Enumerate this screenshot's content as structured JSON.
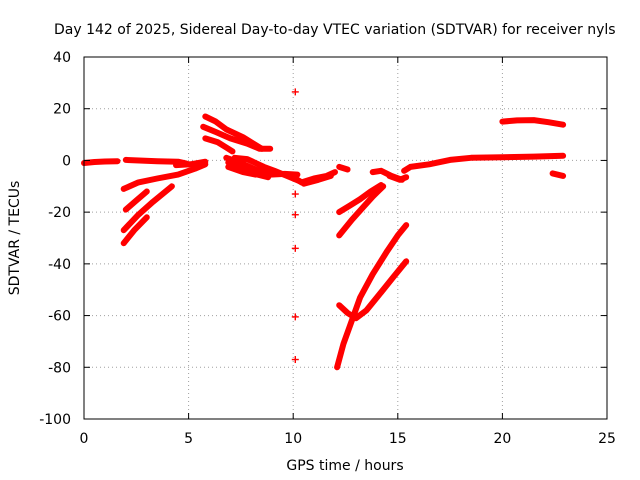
{
  "chart_data": {
    "type": "scatter",
    "title": "Day 142 of 2025, Sidereal Day-to-day VTEC variation (SDTVAR) for receiver nyls",
    "xlabel": "GPS time / hours",
    "ylabel": "SDTVAR / TECUs",
    "xlim": [
      0,
      25
    ],
    "ylim": [
      -100,
      40
    ],
    "xticks": [
      0,
      5,
      10,
      15,
      20,
      25
    ],
    "xtick_labels": [
      "0",
      "5",
      "10",
      "15",
      "20",
      "25"
    ],
    "yticks": [
      -100,
      -80,
      -60,
      -40,
      -20,
      0,
      20,
      40
    ],
    "ytick_labels": [
      "-100",
      "-80",
      "-60",
      "-40",
      "-20",
      "0",
      "20",
      "40"
    ],
    "grid": true,
    "marker": "+",
    "color": "#ff0000",
    "segments": [
      [
        [
          0.0,
          -1
        ],
        [
          0.5,
          -0.6
        ],
        [
          1.0,
          -0.4
        ],
        [
          1.6,
          -0.3
        ]
      ],
      [
        [
          1.9,
          -11
        ],
        [
          2.6,
          -8.5
        ],
        [
          3.5,
          -7
        ],
        [
          4.5,
          -5.5
        ],
        [
          5.3,
          -3.2
        ],
        [
          5.8,
          -1.5
        ]
      ],
      [
        [
          2.0,
          -19
        ],
        [
          2.5,
          -15.5
        ],
        [
          3.0,
          -12
        ]
      ],
      [
        [
          1.9,
          -27
        ],
        [
          2.6,
          -21
        ],
        [
          3.3,
          -16
        ],
        [
          4.2,
          -10
        ]
      ],
      [
        [
          1.9,
          -32
        ],
        [
          2.4,
          -27
        ],
        [
          3.0,
          -22
        ]
      ],
      [
        [
          2.0,
          0.2
        ],
        [
          3.5,
          -0.3
        ],
        [
          4.5,
          -0.5
        ],
        [
          4.9,
          -1.2
        ]
      ],
      [
        [
          4.4,
          -1.8
        ],
        [
          5.1,
          -1.5
        ],
        [
          5.8,
          -0.5
        ]
      ],
      [
        [
          5.8,
          17
        ],
        [
          6.3,
          15
        ],
        [
          6.8,
          12
        ],
        [
          7.6,
          9
        ],
        [
          8.2,
          6
        ],
        [
          8.5,
          4.5
        ]
      ],
      [
        [
          5.7,
          13
        ],
        [
          6.3,
          11
        ],
        [
          7.0,
          8.5
        ],
        [
          7.8,
          6.5
        ],
        [
          8.4,
          4.5
        ],
        [
          8.9,
          4.5
        ]
      ],
      [
        [
          5.8,
          8.5
        ],
        [
          6.4,
          7
        ],
        [
          6.8,
          5
        ],
        [
          7.1,
          3.5
        ]
      ],
      [
        [
          6.8,
          1
        ],
        [
          7.5,
          -1
        ],
        [
          8.2,
          -3.5
        ],
        [
          8.9,
          -5.5
        ],
        [
          9.6,
          -5.2
        ],
        [
          10.2,
          -5.5
        ]
      ],
      [
        [
          6.9,
          -0.8
        ],
        [
          7.6,
          -3.5
        ],
        [
          8.3,
          -5.5
        ],
        [
          8.8,
          -6.5
        ]
      ],
      [
        [
          7.2,
          1
        ],
        [
          7.8,
          0.5
        ],
        [
          8.6,
          -2.5
        ],
        [
          9.1,
          -4
        ],
        [
          9.7,
          -6
        ],
        [
          10.3,
          -8
        ]
      ],
      [
        [
          6.9,
          -2.5
        ],
        [
          7.6,
          -4.5
        ],
        [
          8.2,
          -5.5
        ]
      ],
      [
        [
          10.0,
          -6.5
        ],
        [
          10.4,
          -8.5
        ],
        [
          11.0,
          -7
        ],
        [
          11.6,
          -6
        ],
        [
          12.0,
          -4.5
        ]
      ],
      [
        [
          10.5,
          -9
        ],
        [
          11.2,
          -7.5
        ],
        [
          11.8,
          -6
        ]
      ],
      [
        [
          12.2,
          -2.5
        ],
        [
          12.6,
          -3.5
        ]
      ],
      [
        [
          12.2,
          -20
        ],
        [
          12.7,
          -17.5
        ],
        [
          13.2,
          -15
        ],
        [
          13.7,
          -12
        ],
        [
          14.2,
          -9.5
        ]
      ],
      [
        [
          12.2,
          -29
        ],
        [
          12.8,
          -23
        ],
        [
          13.3,
          -18.5
        ],
        [
          13.8,
          -14
        ],
        [
          14.3,
          -10
        ]
      ],
      [
        [
          12.1,
          -80
        ],
        [
          12.4,
          -71
        ],
        [
          12.8,
          -62
        ],
        [
          13.2,
          -53
        ],
        [
          13.8,
          -44
        ],
        [
          14.5,
          -35
        ],
        [
          15.0,
          -29
        ],
        [
          15.4,
          -25
        ]
      ],
      [
        [
          12.2,
          -56
        ],
        [
          12.6,
          -59
        ],
        [
          13.0,
          -61
        ],
        [
          13.5,
          -58
        ],
        [
          14.2,
          -51
        ],
        [
          14.8,
          -45
        ],
        [
          15.4,
          -39
        ]
      ],
      [
        [
          13.8,
          -4.5
        ],
        [
          14.2,
          -4
        ],
        [
          14.7,
          -6
        ],
        [
          15.2,
          -7.5
        ]
      ],
      [
        [
          14.6,
          -6
        ],
        [
          15.1,
          -7.5
        ],
        [
          15.4,
          -6.5
        ]
      ],
      [
        [
          15.3,
          -4
        ],
        [
          15.6,
          -2.5
        ],
        [
          16.5,
          -1.5
        ],
        [
          17.5,
          0.2
        ],
        [
          18.5,
          1
        ],
        [
          20.0,
          1.2
        ],
        [
          21.5,
          1.5
        ],
        [
          22.9,
          1.8
        ]
      ],
      [
        [
          20.0,
          15
        ],
        [
          20.7,
          15.5
        ],
        [
          21.5,
          15.6
        ],
        [
          22.2,
          14.8
        ],
        [
          22.9,
          13.8
        ]
      ],
      [
        [
          22.4,
          -5
        ],
        [
          22.9,
          -6
        ]
      ]
    ],
    "points": [
      [
        10.1,
        26.5
      ],
      [
        10.1,
        -13
      ],
      [
        10.1,
        -21
      ],
      [
        10.1,
        -34
      ],
      [
        10.1,
        -60.5
      ],
      [
        10.1,
        -77
      ]
    ]
  }
}
